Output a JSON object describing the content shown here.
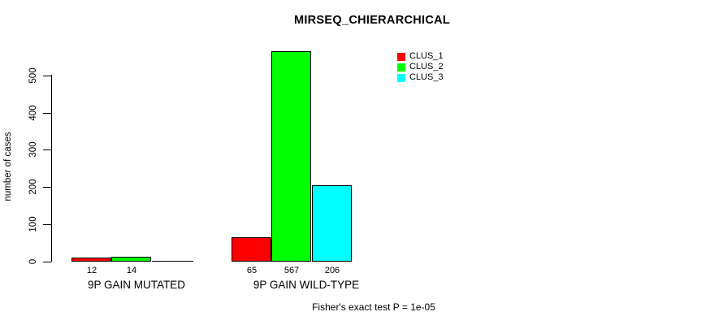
{
  "chart_data": {
    "type": "bar",
    "title": "MIRSEQ_CHIERARCHICAL",
    "ylabel": "number of cases",
    "xlabel": "",
    "categories": [
      "9P GAIN MUTATED",
      "9P GAIN WILD-TYPE"
    ],
    "series": [
      {
        "name": "CLUS_1",
        "color": "#ff0000",
        "values": [
          12,
          65
        ]
      },
      {
        "name": "CLUS_2",
        "color": "#00ff00",
        "values": [
          14,
          567
        ]
      },
      {
        "name": "CLUS_3",
        "color": "#00ffff",
        "values": [
          0,
          206
        ]
      }
    ],
    "bar_value_labels_shown": true,
    "yticks": [
      0,
      100,
      200,
      300,
      400,
      500
    ],
    "ylim": [
      0,
      570
    ],
    "grid": false,
    "legend_position": "top-right",
    "annotation": "Fisher's exact test P = 1e-05",
    "colors": {
      "background": "#ffffff",
      "axis": "#000000",
      "text": "#000000"
    }
  }
}
